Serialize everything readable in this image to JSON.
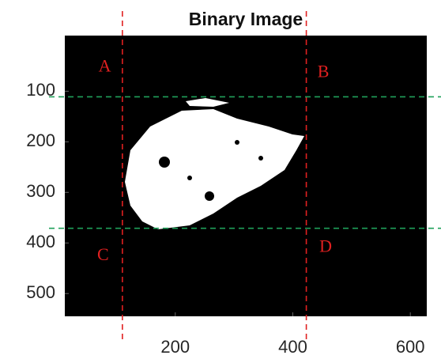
{
  "chart_data": {
    "type": "image",
    "title": "Binary Image",
    "xlim": [
      12,
      628
    ],
    "ylim": [
      -10,
      545
    ],
    "y_reversed": true,
    "xticks": [
      200,
      400,
      600
    ],
    "yticks": [
      100,
      200,
      300,
      400,
      500
    ],
    "vlines": {
      "color": "#e02020",
      "values": [
        110,
        423
      ]
    },
    "hlines": {
      "color": "#1fa05a",
      "values": [
        111,
        371
      ]
    },
    "annotations": [
      {
        "text": "A",
        "x": 80,
        "y": 53
      },
      {
        "text": "B",
        "x": 452,
        "y": 64
      },
      {
        "text": "C",
        "x": 77,
        "y": 426
      },
      {
        "text": "D",
        "x": 456,
        "y": 410
      }
    ],
    "annotation_color": "#e02020"
  }
}
